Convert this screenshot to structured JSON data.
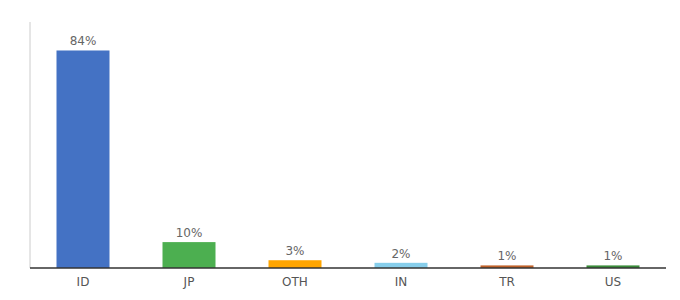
{
  "chart_data": {
    "type": "bar",
    "categories": [
      "ID",
      "JP",
      "OTH",
      "IN",
      "TR",
      "US"
    ],
    "values": [
      84,
      10,
      3,
      2,
      1,
      1
    ],
    "value_labels": [
      "84%",
      "10%",
      "3%",
      "2%",
      "1%",
      "1%"
    ],
    "colors": [
      "#4472c4",
      "#4CAF50",
      "#FFA500",
      "#87CEEB",
      "#C0622A",
      "#3A8C3A"
    ],
    "ylim": [
      0,
      95
    ],
    "tick_labels": "x",
    "data_labels": true,
    "grid": false
  }
}
